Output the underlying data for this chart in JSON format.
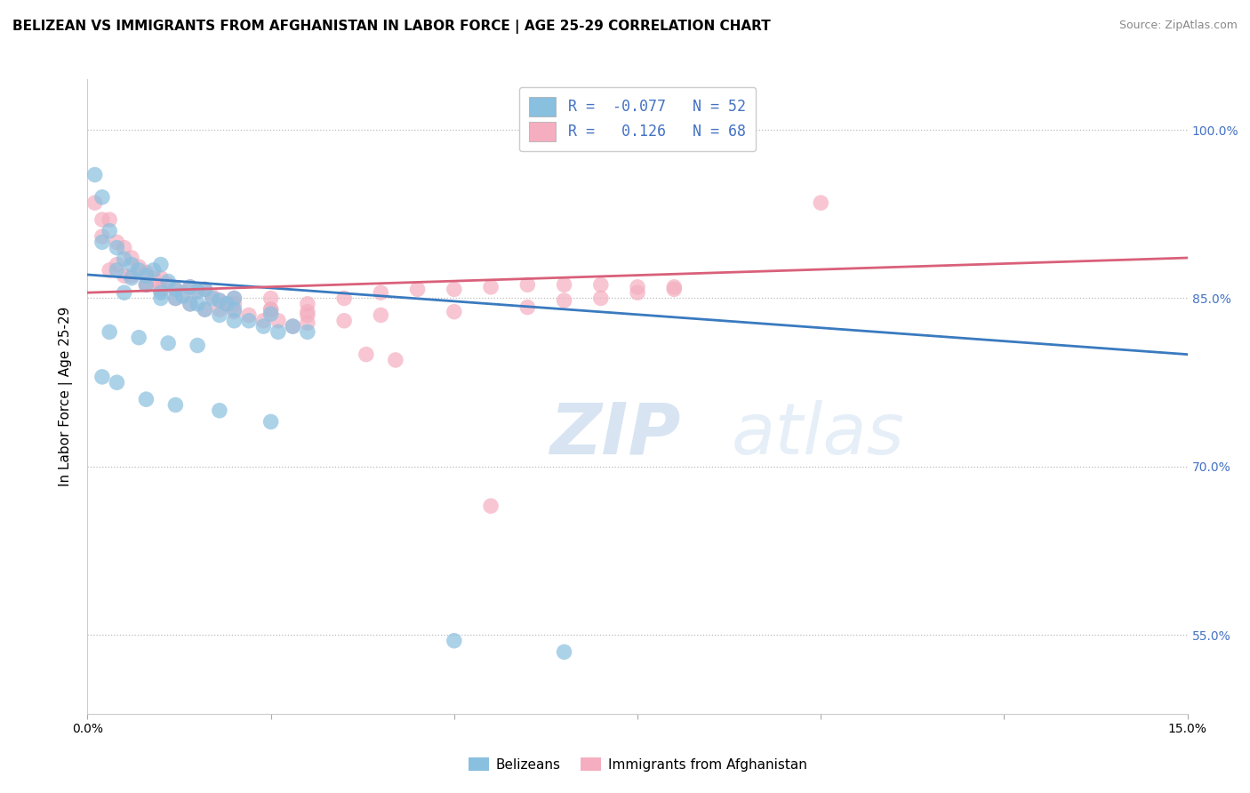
{
  "title": "BELIZEAN VS IMMIGRANTS FROM AFGHANISTAN IN LABOR FORCE | AGE 25-29 CORRELATION CHART",
  "source": "Source: ZipAtlas.com",
  "ylabel": "In Labor Force | Age 25-29",
  "xlim": [
    0.0,
    0.15
  ],
  "ylim": [
    0.48,
    1.045
  ],
  "xticks": [
    0.0,
    0.025,
    0.05,
    0.075,
    0.1,
    0.125,
    0.15
  ],
  "ytick_labels_right": [
    "100.0%",
    "85.0%",
    "70.0%",
    "55.0%"
  ],
  "ytick_vals_right": [
    1.0,
    0.85,
    0.7,
    0.55
  ],
  "blue_R": -0.077,
  "blue_N": 52,
  "pink_R": 0.126,
  "pink_N": 68,
  "blue_color": "#89bfdf",
  "pink_color": "#f4aec0",
  "blue_line_color": "#3a7abf",
  "pink_line_color": "#d9607a",
  "watermark_zip": "ZIP",
  "watermark_atlas": "atlas",
  "legend_label_blue": "Belizeans",
  "legend_label_pink": "Immigrants from Afghanistan",
  "blue_line_x0": 0.0,
  "blue_line_y0": 0.871,
  "blue_line_x1": 0.15,
  "blue_line_y1": 0.8,
  "pink_line_x0": 0.0,
  "pink_line_y0": 0.855,
  "pink_line_x1": 0.15,
  "pink_line_y1": 0.886,
  "blue_scatter_x": [
    0.001,
    0.002,
    0.003,
    0.004,
    0.005,
    0.006,
    0.007,
    0.008,
    0.009,
    0.01,
    0.011,
    0.012,
    0.013,
    0.014,
    0.015,
    0.016,
    0.017,
    0.018,
    0.019,
    0.02,
    0.002,
    0.004,
    0.006,
    0.008,
    0.01,
    0.012,
    0.014,
    0.016,
    0.018,
    0.02,
    0.022,
    0.024,
    0.026,
    0.028,
    0.03,
    0.025,
    0.02,
    0.015,
    0.01,
    0.005,
    0.003,
    0.007,
    0.011,
    0.015,
    0.002,
    0.004,
    0.008,
    0.012,
    0.018,
    0.025,
    0.05,
    0.065
  ],
  "blue_scatter_y": [
    0.96,
    0.94,
    0.91,
    0.895,
    0.885,
    0.88,
    0.875,
    0.87,
    0.875,
    0.88,
    0.865,
    0.858,
    0.852,
    0.86,
    0.856,
    0.858,
    0.85,
    0.848,
    0.845,
    0.85,
    0.9,
    0.875,
    0.868,
    0.862,
    0.855,
    0.85,
    0.845,
    0.84,
    0.835,
    0.83,
    0.83,
    0.825,
    0.82,
    0.825,
    0.82,
    0.836,
    0.84,
    0.845,
    0.85,
    0.855,
    0.82,
    0.815,
    0.81,
    0.808,
    0.78,
    0.775,
    0.76,
    0.755,
    0.75,
    0.74,
    0.545,
    0.535
  ],
  "pink_scatter_x": [
    0.001,
    0.002,
    0.003,
    0.004,
    0.005,
    0.006,
    0.007,
    0.008,
    0.009,
    0.01,
    0.011,
    0.012,
    0.013,
    0.014,
    0.015,
    0.016,
    0.017,
    0.018,
    0.019,
    0.02,
    0.002,
    0.004,
    0.006,
    0.008,
    0.01,
    0.012,
    0.014,
    0.016,
    0.018,
    0.02,
    0.022,
    0.024,
    0.026,
    0.028,
    0.03,
    0.025,
    0.03,
    0.035,
    0.025,
    0.03,
    0.035,
    0.04,
    0.045,
    0.05,
    0.055,
    0.06,
    0.065,
    0.07,
    0.075,
    0.08,
    0.003,
    0.005,
    0.008,
    0.01,
    0.02,
    0.025,
    0.03,
    0.04,
    0.05,
    0.06,
    0.065,
    0.07,
    0.075,
    0.08,
    0.038,
    0.042,
    0.1,
    0.055
  ],
  "pink_scatter_y": [
    0.935,
    0.92,
    0.92,
    0.9,
    0.895,
    0.886,
    0.878,
    0.873,
    0.868,
    0.868,
    0.862,
    0.858,
    0.855,
    0.86,
    0.856,
    0.858,
    0.852,
    0.848,
    0.845,
    0.85,
    0.905,
    0.88,
    0.87,
    0.862,
    0.858,
    0.85,
    0.845,
    0.84,
    0.84,
    0.838,
    0.835,
    0.83,
    0.83,
    0.825,
    0.828,
    0.84,
    0.835,
    0.83,
    0.85,
    0.845,
    0.85,
    0.855,
    0.858,
    0.858,
    0.86,
    0.862,
    0.862,
    0.862,
    0.86,
    0.858,
    0.875,
    0.87,
    0.862,
    0.858,
    0.845,
    0.84,
    0.838,
    0.835,
    0.838,
    0.842,
    0.848,
    0.85,
    0.855,
    0.86,
    0.8,
    0.795,
    0.935,
    0.665
  ],
  "title_fontsize": 11,
  "axis_label_fontsize": 11,
  "tick_fontsize": 10
}
